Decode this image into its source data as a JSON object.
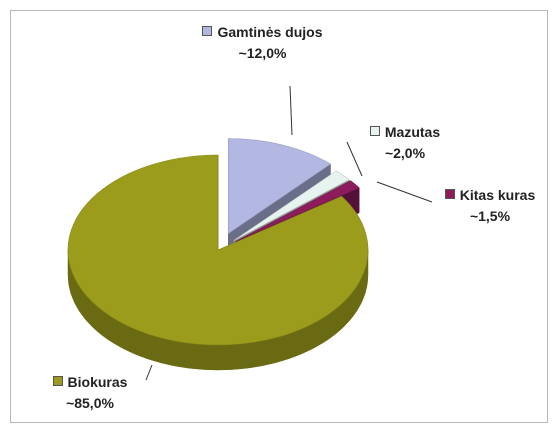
{
  "chart_data": {
    "type": "pie",
    "categories": [
      "Gamtinės dujos",
      "Mazutas",
      "Kitas kuras",
      "Biokuras"
    ],
    "values": [
      12,
      2,
      1.5,
      85
    ],
    "value_labels": [
      "~12,0%",
      "~2,0%",
      "~1,5%",
      "~85,0%"
    ],
    "colors": [
      "#b3b8e2",
      "#e6f3ee",
      "#8c1c5c",
      "#9c9c1c"
    ],
    "three_d": true
  }
}
